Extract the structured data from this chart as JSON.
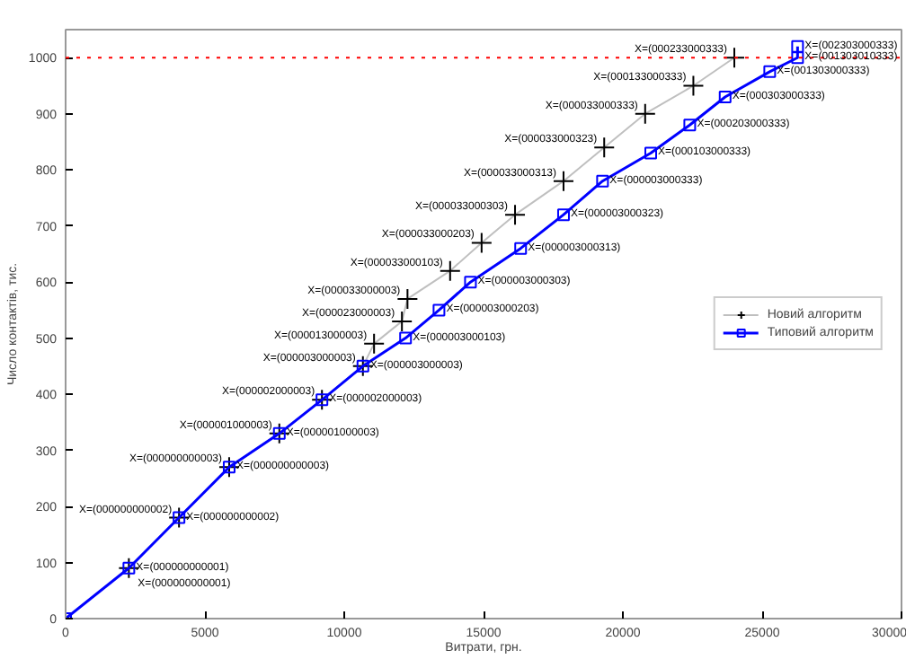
{
  "chart_data": {
    "type": "line",
    "xlabel": "Витрати, грн.",
    "ylabel": "Число контактів, тис.",
    "xlim": [
      0,
      30000
    ],
    "ylim": [
      0,
      1050
    ],
    "xticks": [
      0,
      5000,
      10000,
      15000,
      20000,
      25000,
      30000
    ],
    "yticks": [
      0,
      100,
      200,
      300,
      400,
      500,
      600,
      700,
      800,
      900,
      1000
    ],
    "grid": false,
    "legend": "right",
    "line_style": "solid",
    "ref_lines": [
      {
        "axis": "y",
        "value": 1000,
        "color": "#ff0000",
        "line_style": "dotted"
      }
    ],
    "series": [
      {
        "name": "Новий алгоритм",
        "color": "#000000",
        "marker": "cross",
        "x": [
          2270,
          4070,
          5870,
          7670,
          9200,
          10670,
          11070,
          12070,
          12270,
          13800,
          14930,
          16130,
          17870,
          19330,
          20800,
          22530,
          24000
        ],
        "values": [
          90,
          180,
          270,
          330,
          390,
          450,
          490,
          530,
          570,
          620,
          670,
          720,
          780,
          840,
          900,
          950,
          1000
        ]
      },
      {
        "name": "Типовий алгоритм",
        "color": "#0000ff",
        "marker": "square",
        "x": [
          0,
          2270,
          4070,
          5870,
          7670,
          9200,
          10670,
          12200,
          13400,
          14530,
          16330,
          17870,
          19270,
          21000,
          22400,
          23670,
          25270,
          26270,
          26270
        ],
        "values": [
          0,
          90,
          180,
          270,
          330,
          390,
          450,
          500,
          550,
          600,
          660,
          720,
          780,
          830,
          880,
          930,
          975,
          1000,
          1020
        ]
      }
    ],
    "annotations": [
      {
        "text": "X=(000000000001)",
        "x": 2270,
        "y": 90
      },
      {
        "text": "X=(000000000002)",
        "x": 4070,
        "y": 180
      },
      {
        "text": "X=(000000000003)",
        "x": 5870,
        "y": 270
      },
      {
        "text": "X=(000001000003)",
        "x": 7670,
        "y": 330
      },
      {
        "text": "X=(000002000003)",
        "x": 9200,
        "y": 390
      },
      {
        "text": "X=(000003000003)",
        "x": 10670,
        "y": 450
      },
      {
        "text": "X=(000013000003)",
        "x": 11070,
        "y": 490
      },
      {
        "text": "X=(000023000003)",
        "x": 12070,
        "y": 530
      },
      {
        "text": "X=(000033000003)",
        "x": 12270,
        "y": 570
      },
      {
        "text": "X=(000033000103)",
        "x": 13800,
        "y": 620
      },
      {
        "text": "X=(000033000203)",
        "x": 14930,
        "y": 670
      },
      {
        "text": "X=(000033000303)",
        "x": 16130,
        "y": 720
      },
      {
        "text": "X=(000033000313)",
        "x": 17870,
        "y": 780
      },
      {
        "text": "X=(000033000323)",
        "x": 19330,
        "y": 840
      },
      {
        "text": "X=(000033000333)",
        "x": 20800,
        "y": 900
      },
      {
        "text": "X=(000133000333)",
        "x": 22530,
        "y": 950
      },
      {
        "text": "X=(000233000333)",
        "x": 24000,
        "y": 1000
      },
      {
        "text": "X=(000000000001)",
        "x": 2270,
        "y": 90
      },
      {
        "text": "X=(000000000002)",
        "x": 4070,
        "y": 180
      },
      {
        "text": "X=(000000000003)",
        "x": 5870,
        "y": 270
      },
      {
        "text": "X=(000001000003)",
        "x": 7670,
        "y": 330
      },
      {
        "text": "X=(000002000003)",
        "x": 9200,
        "y": 390
      },
      {
        "text": "X=(000003000003)",
        "x": 10670,
        "y": 450
      },
      {
        "text": "X=(000003000103)",
        "x": 12200,
        "y": 500
      },
      {
        "text": "X=(000003000203)",
        "x": 13400,
        "y": 550
      },
      {
        "text": "X=(000003000303)",
        "x": 14530,
        "y": 600
      },
      {
        "text": "X=(000003000313)",
        "x": 16330,
        "y": 660
      },
      {
        "text": "X=(000003000323)",
        "x": 17870,
        "y": 720
      },
      {
        "text": "X=(000003000333)",
        "x": 19270,
        "y": 780
      },
      {
        "text": "X=(000103000333)",
        "x": 21000,
        "y": 830
      },
      {
        "text": "X=(000203000333)",
        "x": 22400,
        "y": 880
      },
      {
        "text": "X=(000303000333)",
        "x": 23670,
        "y": 930
      },
      {
        "text": "X=(001303000333)",
        "x": 25270,
        "y": 975
      },
      {
        "text": "X=(001303010333)",
        "x": 26270,
        "y": 1000
      },
      {
        "text": "X=(002303000333)",
        "x": 26270,
        "y": 1020
      }
    ]
  }
}
